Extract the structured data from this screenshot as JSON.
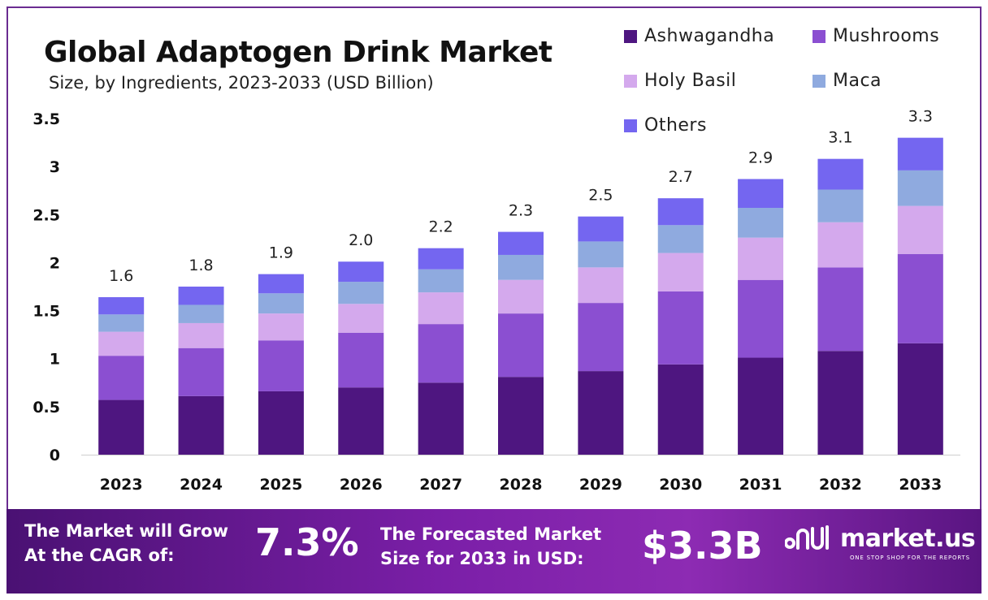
{
  "header": {
    "title": "Global Adaptogen Drink Market",
    "subtitle": "Size, by Ingredients, 2023-2033 (USD Billion)"
  },
  "legend": [
    {
      "label": "Ashwagandha",
      "color": "#4e1680"
    },
    {
      "label": "Mushrooms",
      "color": "#8b4fd1"
    },
    {
      "label": "Holy Basil",
      "color": "#d4a9ed"
    },
    {
      "label": "Maca",
      "color": "#8faadf"
    },
    {
      "label": "Others",
      "color": "#7466f0"
    }
  ],
  "chart_data": {
    "type": "bar",
    "stacked": true,
    "title": "Global Adaptogen Drink Market",
    "subtitle": "Size, by Ingredients, 2023-2033 (USD Billion)",
    "xlabel": "",
    "ylabel": "",
    "ylim": [
      0,
      3.5
    ],
    "yticks": [
      "0",
      "0.5",
      "1",
      "1.5",
      "2",
      "2.5",
      "3",
      "3.5"
    ],
    "categories": [
      "2023",
      "2024",
      "2025",
      "2026",
      "2027",
      "2028",
      "2029",
      "2030",
      "2031",
      "2032",
      "2033"
    ],
    "totals": [
      "1.6",
      "1.8",
      "1.9",
      "2.0",
      "2.2",
      "2.3",
      "2.5",
      "2.7",
      "2.9",
      "3.1",
      "3.3"
    ],
    "series": [
      {
        "name": "Ashwagandha",
        "color": "#4e1680",
        "values": [
          0.57,
          0.61,
          0.66,
          0.7,
          0.75,
          0.81,
          0.87,
          0.94,
          1.01,
          1.08,
          1.16
        ]
      },
      {
        "name": "Mushrooms",
        "color": "#8b4fd1",
        "values": [
          0.46,
          0.5,
          0.53,
          0.57,
          0.61,
          0.66,
          0.71,
          0.76,
          0.81,
          0.87,
          0.93
        ]
      },
      {
        "name": "Holy Basil",
        "color": "#d4a9ed",
        "values": [
          0.25,
          0.26,
          0.28,
          0.3,
          0.33,
          0.35,
          0.37,
          0.4,
          0.44,
          0.47,
          0.5
        ]
      },
      {
        "name": "Maca",
        "color": "#8faadf",
        "values": [
          0.18,
          0.19,
          0.21,
          0.23,
          0.24,
          0.26,
          0.27,
          0.29,
          0.31,
          0.34,
          0.37
        ]
      },
      {
        "name": "Others",
        "color": "#7466f0",
        "values": [
          0.18,
          0.19,
          0.2,
          0.21,
          0.22,
          0.24,
          0.26,
          0.28,
          0.3,
          0.32,
          0.34
        ]
      }
    ]
  },
  "footer": {
    "cagr_label_line1": "The Market will Grow",
    "cagr_label_line2": "At the CAGR of:",
    "cagr_value": "7.3%",
    "forecast_label_line1": "The Forecasted Market",
    "forecast_label_line2": "Size for 2033 in USD:",
    "forecast_value": "$3.3B",
    "brand": "market.us",
    "brand_tagline": "ONE STOP SHOP FOR THE REPORTS",
    "banner_color": "#7b1fa8"
  }
}
